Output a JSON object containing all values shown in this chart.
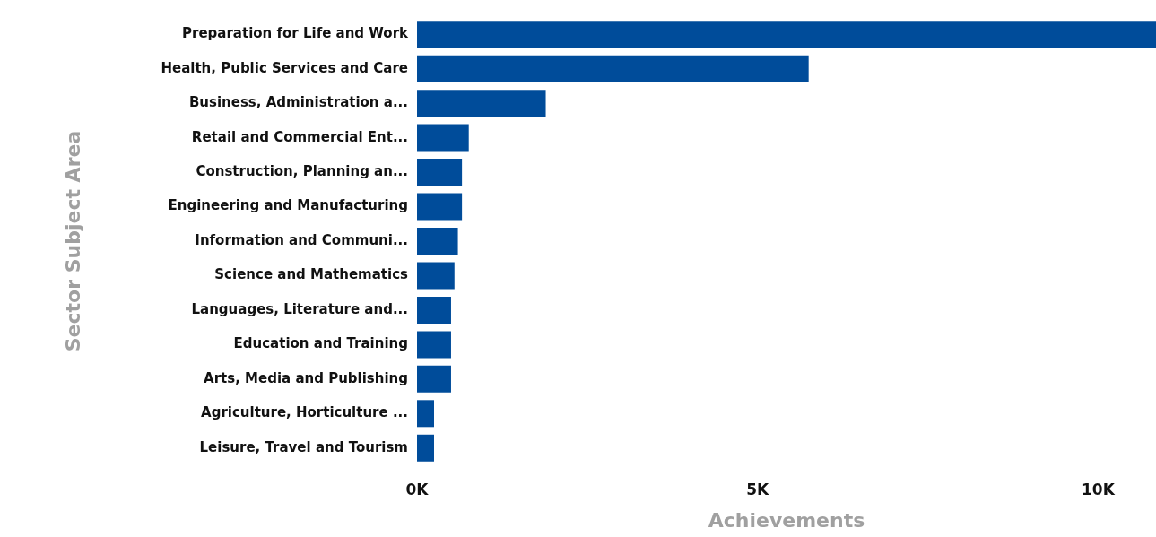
{
  "chart_data": {
    "type": "bar",
    "orientation": "horizontal",
    "xlabel": "Achievements",
    "ylabel": "Sector Subject Area",
    "categories": [
      "Preparation for Life and Work",
      "Health, Public Services and Care",
      "Business, Administration a...",
      "Retail and Commercial Ent...",
      "Construction, Planning an...",
      "Engineering and Manufacturing",
      "Information and Communi...",
      "Science and Mathematics",
      "Languages, Literature and...",
      "Education and Training",
      "Arts, Media and Publishing",
      "Agriculture, Horticulture ...",
      "Leisure, Travel and Tourism"
    ],
    "values": [
      10850,
      5750,
      1890,
      760,
      660,
      660,
      600,
      550,
      500,
      500,
      500,
      250,
      250
    ],
    "color": "#004c9a",
    "xlim": [
      0,
      10850
    ],
    "xticks": [
      {
        "value": 0,
        "label": "0K"
      },
      {
        "value": 5000,
        "label": "5K"
      },
      {
        "value": 10000,
        "label": "10K"
      }
    ],
    "grid": false,
    "legend": false
  }
}
